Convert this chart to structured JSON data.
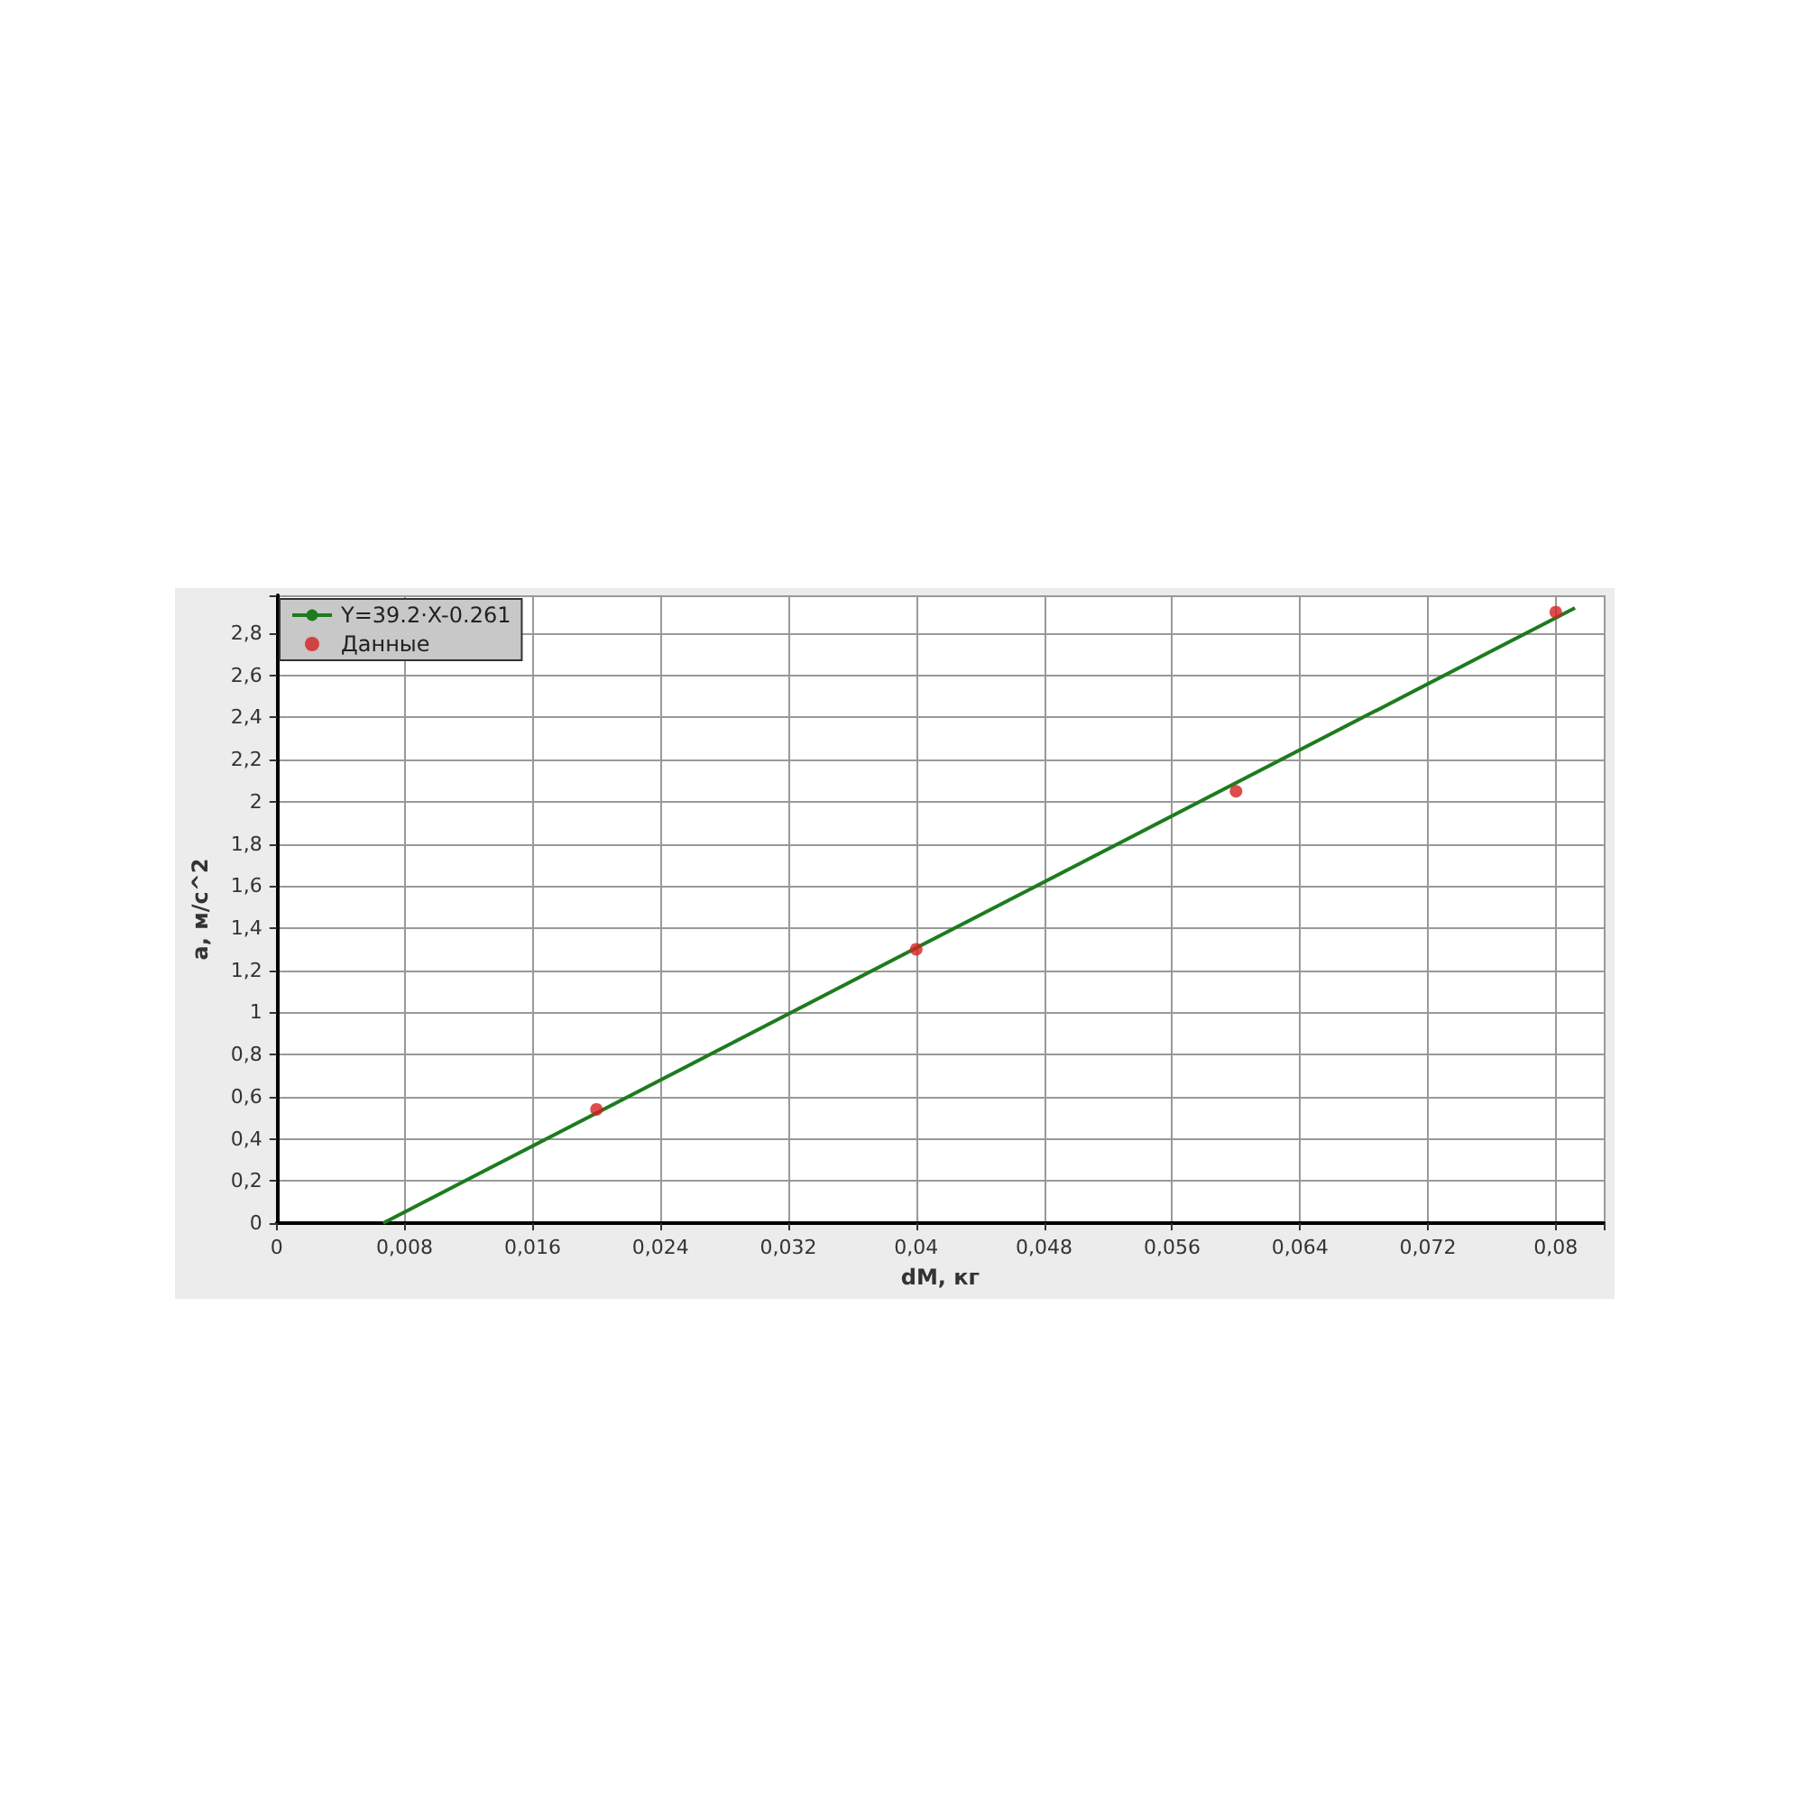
{
  "chart_data": {
    "type": "scatter",
    "xlabel": "dM, кг",
    "ylabel": "a, м/с^2",
    "xlim": [
      0,
      0.083
    ],
    "ylim": [
      0,
      2.98
    ],
    "xticks": [
      0,
      {
        "value": 0.008,
        "label": "0,008"
      },
      {
        "value": 0.016,
        "label": "0,016"
      },
      {
        "value": 0.024,
        "label": "0,024"
      },
      {
        "value": 0.032,
        "label": "0,032"
      },
      {
        "value": 0.04,
        "label": "0,04"
      },
      {
        "value": 0.048,
        "label": "0,048"
      },
      {
        "value": 0.056,
        "label": "0,056"
      },
      {
        "value": 0.064,
        "label": "0,064"
      },
      {
        "value": 0.072,
        "label": "0,072"
      },
      {
        "value": 0.08,
        "label": "0,08"
      }
    ],
    "yticks": [
      0,
      {
        "value": 0.2,
        "label": "0,2"
      },
      {
        "value": 0.4,
        "label": "0,4"
      },
      {
        "value": 0.6,
        "label": "0,6"
      },
      {
        "value": 0.8,
        "label": "0,8"
      },
      1,
      {
        "value": 1.2,
        "label": "1,2"
      },
      {
        "value": 1.4,
        "label": "1,4"
      },
      {
        "value": 1.6,
        "label": "1,6"
      },
      {
        "value": 1.8,
        "label": "1,8"
      },
      2,
      {
        "value": 2.2,
        "label": "2,2"
      },
      {
        "value": 2.4,
        "label": "2,4"
      },
      {
        "value": 2.6,
        "label": "2,6"
      },
      {
        "value": 2.8,
        "label": "2,8"
      }
    ],
    "series": [
      {
        "name": "Y=39.2·X-0.261",
        "type": "line",
        "color": "#1e7b1e",
        "marker": "none",
        "x": [
          0.00666,
          0.0812
        ],
        "values": [
          0,
          2.92
        ]
      },
      {
        "name": "Данные",
        "color": "#d42020",
        "marker": "circle",
        "x": [
          0.02,
          0.04,
          0.06,
          0.08
        ],
        "values": [
          0.54,
          1.3,
          2.05,
          2.9
        ]
      }
    ],
    "grid": true,
    "legend": "top left"
  }
}
